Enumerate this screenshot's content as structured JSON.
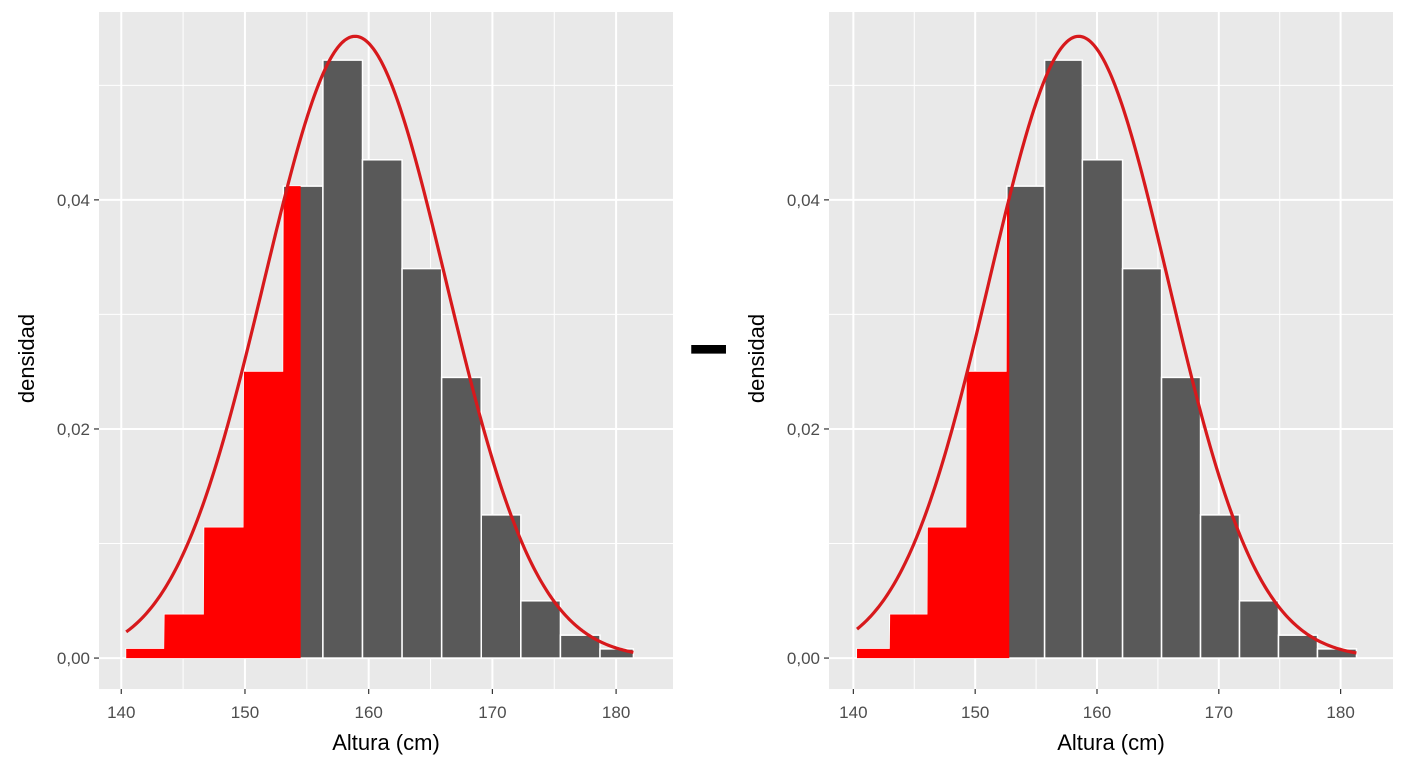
{
  "operator": "-",
  "colors": {
    "panel_bg": "#e9e9e9",
    "grid": "#ffffff",
    "bar": "#595959",
    "bar_edge": "#ffffff",
    "highlight": "#ff0000",
    "curve": "#d7191c",
    "tick_text": "#4d4d4d",
    "tick_mark": "#333333"
  },
  "chart_data": [
    {
      "type": "histogram",
      "name": "left",
      "xlabel": "Altura (cm)",
      "ylabel": "densidad",
      "xlim": [
        138.2,
        184.6
      ],
      "ylim": [
        -0.0027,
        0.0564
      ],
      "x_ticks": [
        140,
        150,
        160,
        170,
        180
      ],
      "x_tick_labels": [
        "140",
        "150",
        "160",
        "170",
        "180"
      ],
      "y_ticks": [
        0,
        0.02,
        0.04
      ],
      "y_tick_labels": [
        "0,00",
        "0,02",
        "0,04"
      ],
      "bins": [
        {
          "x0": 140.4,
          "x1": 143.5,
          "density": 0.0008
        },
        {
          "x0": 143.5,
          "x1": 146.7,
          "density": 0.0038
        },
        {
          "x0": 146.7,
          "x1": 149.9,
          "density": 0.0114
        },
        {
          "x0": 149.9,
          "x1": 153.1,
          "density": 0.025
        },
        {
          "x0": 153.1,
          "x1": 156.3,
          "density": 0.0412
        },
        {
          "x0": 156.3,
          "x1": 159.5,
          "density": 0.0522
        },
        {
          "x0": 159.5,
          "x1": 162.7,
          "density": 0.0435
        },
        {
          "x0": 162.7,
          "x1": 165.9,
          "density": 0.034
        },
        {
          "x0": 165.9,
          "x1": 169.1,
          "density": 0.0245
        },
        {
          "x0": 169.1,
          "x1": 172.3,
          "density": 0.0125
        },
        {
          "x0": 172.3,
          "x1": 175.5,
          "density": 0.005
        },
        {
          "x0": 175.5,
          "x1": 178.7,
          "density": 0.002
        },
        {
          "x0": 178.7,
          "x1": 181.4,
          "density": 0.0008
        }
      ],
      "normal_curve": {
        "mean": 158.9,
        "sd": 7.35,
        "x_range": [
          140.4,
          181.4
        ]
      },
      "shaded_upper": 154.5
    },
    {
      "type": "histogram",
      "name": "right",
      "xlabel": "Altura (cm)",
      "ylabel": "densidad",
      "xlim": [
        138.0,
        184.3
      ],
      "ylim": [
        -0.0027,
        0.0564
      ],
      "x_ticks": [
        140,
        150,
        160,
        170,
        180
      ],
      "x_tick_labels": [
        "140",
        "150",
        "160",
        "170",
        "180"
      ],
      "y_ticks": [
        0,
        0.02,
        0.04
      ],
      "y_tick_labels": [
        "0,00",
        "0,02",
        "0,04"
      ],
      "bins": [
        {
          "x0": 140.3,
          "x1": 143.0,
          "density": 0.0008
        },
        {
          "x0": 143.0,
          "x1": 146.1,
          "density": 0.0038
        },
        {
          "x0": 146.1,
          "x1": 149.3,
          "density": 0.0114
        },
        {
          "x0": 149.3,
          "x1": 152.6,
          "density": 0.025
        },
        {
          "x0": 152.6,
          "x1": 155.7,
          "density": 0.0412
        },
        {
          "x0": 155.7,
          "x1": 158.8,
          "density": 0.0522
        },
        {
          "x0": 158.8,
          "x1": 162.1,
          "density": 0.0435
        },
        {
          "x0": 162.1,
          "x1": 165.3,
          "density": 0.034
        },
        {
          "x0": 165.3,
          "x1": 168.5,
          "density": 0.0245
        },
        {
          "x0": 168.5,
          "x1": 171.7,
          "density": 0.0125
        },
        {
          "x0": 171.7,
          "x1": 174.9,
          "density": 0.005
        },
        {
          "x0": 174.9,
          "x1": 178.1,
          "density": 0.002
        },
        {
          "x0": 178.1,
          "x1": 181.3,
          "density": 0.0008
        }
      ],
      "normal_curve": {
        "mean": 158.5,
        "sd": 7.35,
        "x_range": [
          140.3,
          181.3
        ]
      },
      "shaded_upper": 152.8
    }
  ]
}
